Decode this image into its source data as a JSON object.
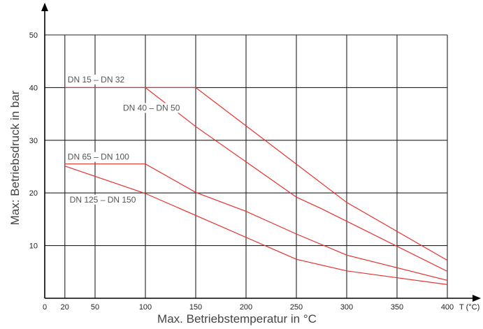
{
  "chart_data": {
    "type": "line",
    "title": "",
    "xlabel": "Max. Betriebstemperatur in °C",
    "ylabel": "Max: Betriebsdruck in bar",
    "x_unit_label": "T (°C)",
    "xlim": [
      0,
      400
    ],
    "ylim": [
      0,
      50
    ],
    "x_ticks": [
      0,
      20,
      50,
      100,
      150,
      200,
      250,
      300,
      350,
      400
    ],
    "y_ticks": [
      10,
      20,
      30,
      40,
      50
    ],
    "grid": true,
    "line_color": "#e8302c",
    "series": [
      {
        "name": "DN 15 – DN 32",
        "points": [
          [
            20,
            40
          ],
          [
            150,
            40
          ],
          [
            300,
            18.2
          ],
          [
            400,
            7.2
          ]
        ]
      },
      {
        "name": "DN 40 – DN 50",
        "points": [
          [
            100,
            40
          ],
          [
            150,
            32.6
          ],
          [
            250,
            19.2
          ],
          [
            275,
            17
          ],
          [
            400,
            5.1
          ]
        ]
      },
      {
        "name": "DN 65 – DN 100",
        "points": [
          [
            20,
            25.5
          ],
          [
            100,
            25.5
          ],
          [
            150,
            20.1
          ],
          [
            200,
            16.5
          ],
          [
            250,
            12.2
          ],
          [
            300,
            8.2
          ],
          [
            400,
            3.4
          ]
        ]
      },
      {
        "name": "DN 125 – DN 150",
        "points": [
          [
            20,
            25.1
          ],
          [
            100,
            19.9
          ],
          [
            250,
            7.4
          ],
          [
            300,
            5.2
          ],
          [
            400,
            2.6
          ]
        ]
      }
    ]
  }
}
